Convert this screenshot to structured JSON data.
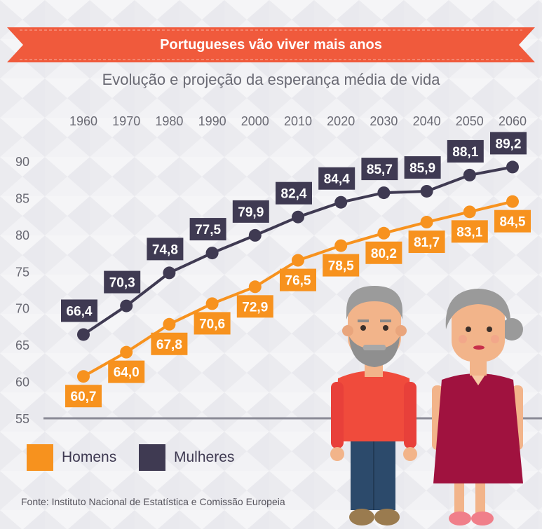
{
  "title": "Portugueses vão viver mais anos",
  "subtitle": "Evolução e projeção da esperança média de vida",
  "source": "Fonte: Instituto Nacional de Estatística e Comissão Europeia",
  "colors": {
    "banner": "#f05a3c",
    "homens": "#f7921e",
    "mulheres": "#3f3a52",
    "axis": "#8a8a96"
  },
  "chart_data": {
    "type": "line",
    "x": [
      "1960",
      "1970",
      "1980",
      "1990",
      "2000",
      "2010",
      "2020",
      "2030",
      "2040",
      "2050",
      "2060"
    ],
    "ylim": [
      55,
      90
    ],
    "yticks": [
      "90",
      "85",
      "80",
      "75",
      "70",
      "65",
      "60",
      "55"
    ],
    "grid": false,
    "legend_position": "bottom-left",
    "series": [
      {
        "name": "Homens",
        "values": [
          60.7,
          64.0,
          67.8,
          70.6,
          72.9,
          76.5,
          78.5,
          80.2,
          81.7,
          83.1,
          84.5
        ],
        "labels": [
          "60,7",
          "64,0",
          "67,8",
          "70,6",
          "72,9",
          "76,5",
          "78,5",
          "80,2",
          "81,7",
          "83,1",
          "84,5"
        ]
      },
      {
        "name": "Mulheres",
        "values": [
          66.4,
          70.3,
          74.8,
          77.5,
          79.9,
          82.4,
          84.4,
          85.7,
          85.9,
          88.1,
          89.2
        ],
        "labels": [
          "66,4",
          "70,3",
          "74,8",
          "77,5",
          "79,9",
          "82,4",
          "84,4",
          "85,7",
          "85,9",
          "88,1",
          "89,2"
        ]
      }
    ]
  },
  "legend": [
    {
      "label": "Homens",
      "color": "#f7921e"
    },
    {
      "label": "Mulheres",
      "color": "#3f3a52"
    }
  ],
  "illustration": {
    "icon": "elderly-couple-icon"
  }
}
